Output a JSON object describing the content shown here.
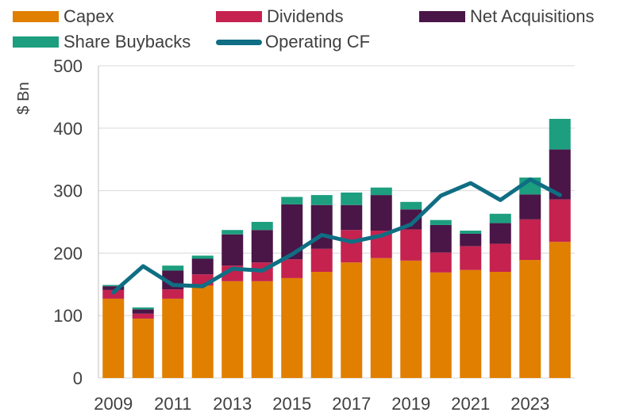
{
  "chart_data": {
    "type": "bar",
    "stacked": true,
    "ylabel": "$ Bn",
    "ylim": [
      0,
      500
    ],
    "yticks": [
      0,
      100,
      200,
      300,
      400,
      500
    ],
    "categories": [
      "2009",
      "2010",
      "2011",
      "2012",
      "2013",
      "2014",
      "2015",
      "2016",
      "2017",
      "2018",
      "2019",
      "2020",
      "2021",
      "2022",
      "2023",
      "2024"
    ],
    "xtick_labels": [
      "2009",
      "2011",
      "2013",
      "2015",
      "2017",
      "2019",
      "2021",
      "2023"
    ],
    "series": [
      {
        "name": "Capex",
        "color": "#E07F00",
        "values": [
          127,
          95,
          127,
          148,
          155,
          155,
          160,
          170,
          185,
          192,
          188,
          169,
          173,
          170,
          189,
          218
        ]
      },
      {
        "name": "Dividends",
        "color": "#C5224F",
        "values": [
          14,
          8,
          15,
          18,
          25,
          30,
          30,
          37,
          52,
          44,
          50,
          32,
          38,
          45,
          65,
          68
        ]
      },
      {
        "name": "Net Acquisitions",
        "color": "#4A1547",
        "values": [
          6,
          7,
          30,
          25,
          50,
          52,
          88,
          70,
          40,
          57,
          32,
          44,
          20,
          33,
          40,
          80
        ]
      },
      {
        "name": "Share Buybacks",
        "color": "#1D9E7F",
        "values": [
          2,
          3,
          8,
          5,
          7,
          13,
          12,
          16,
          20,
          12,
          12,
          8,
          5,
          15,
          27,
          49
        ]
      }
    ],
    "line": {
      "name": "Operating CF",
      "color": "#0F6E83",
      "values": [
        137,
        179,
        149,
        147,
        175,
        172,
        198,
        229,
        218,
        228,
        246,
        292,
        312,
        285,
        318,
        293
      ]
    },
    "legend": {
      "position": "top",
      "items": [
        "Capex",
        "Dividends",
        "Net Acquisitions",
        "Share Buybacks",
        "Operating CF"
      ]
    },
    "grid": true
  }
}
